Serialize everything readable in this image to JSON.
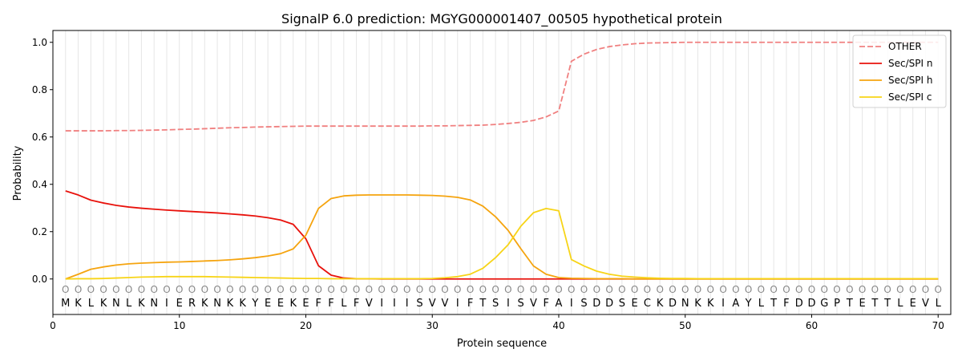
{
  "chart_data": {
    "type": "line",
    "title": "SignalP 6.0 prediction: MGYG000001407_00505 hypothetical protein",
    "xlabel": "Protein sequence",
    "ylabel": "Probability",
    "xlim": [
      0,
      71
    ],
    "ylim": [
      -0.15,
      1.05
    ],
    "xticks": [
      0,
      10,
      20,
      30,
      40,
      50,
      60,
      70
    ],
    "yticks": [
      0.0,
      0.2,
      0.4,
      0.6,
      0.8,
      1.0
    ],
    "xtick_labels": [
      "0",
      "10",
      "20",
      "30",
      "40",
      "50",
      "60",
      "70"
    ],
    "ytick_labels": [
      "0.0",
      "0.2",
      "0.4",
      "0.6",
      "0.8",
      "1.0"
    ],
    "legend_position": "top-right",
    "grid": "vertical lines at each residue",
    "sequence": [
      "M",
      "K",
      "L",
      "K",
      "N",
      "L",
      "K",
      "N",
      "I",
      "E",
      "R",
      "K",
      "N",
      "K",
      "K",
      "Y",
      "E",
      "E",
      "K",
      "E",
      "F",
      "F",
      "L",
      "F",
      "V",
      "I",
      "I",
      "I",
      "S",
      "V",
      "V",
      "I",
      "F",
      "T",
      "S",
      "I",
      "S",
      "V",
      "F",
      "A",
      "I",
      "S",
      "D",
      "D",
      "S",
      "E",
      "C",
      "K",
      "D",
      "N",
      "K",
      "K",
      "I",
      "A",
      "Y",
      "L",
      "T",
      "F",
      "D",
      "D",
      "G",
      "P",
      "T",
      "E",
      "T",
      "T",
      "L",
      "E",
      "V",
      "L"
    ],
    "position_marker_label": "O",
    "x": [
      1,
      2,
      3,
      4,
      5,
      6,
      7,
      8,
      9,
      10,
      11,
      12,
      13,
      14,
      15,
      16,
      17,
      18,
      19,
      20,
      21,
      22,
      23,
      24,
      25,
      26,
      27,
      28,
      29,
      30,
      31,
      32,
      33,
      34,
      35,
      36,
      37,
      38,
      39,
      40,
      41,
      42,
      43,
      44,
      45,
      46,
      47,
      48,
      49,
      50,
      51,
      52,
      53,
      54,
      55,
      56,
      57,
      58,
      59,
      60,
      61,
      62,
      63,
      64,
      65,
      66,
      67,
      68,
      69,
      70
    ],
    "series": [
      {
        "name": "OTHER",
        "color": "#f08080",
        "style": "dashed",
        "values": [
          0.626,
          0.626,
          0.626,
          0.626,
          0.627,
          0.627,
          0.628,
          0.629,
          0.63,
          0.632,
          0.633,
          0.635,
          0.637,
          0.639,
          0.64,
          0.642,
          0.643,
          0.644,
          0.645,
          0.646,
          0.646,
          0.646,
          0.646,
          0.646,
          0.646,
          0.646,
          0.646,
          0.646,
          0.646,
          0.647,
          0.647,
          0.648,
          0.649,
          0.65,
          0.653,
          0.657,
          0.662,
          0.67,
          0.685,
          0.71,
          0.92,
          0.95,
          0.97,
          0.982,
          0.989,
          0.994,
          0.997,
          0.998,
          0.999,
          1.0,
          1.0,
          1.0,
          1.0,
          1.0,
          1.0,
          1.0,
          1.0,
          1.0,
          1.0,
          1.0,
          1.0,
          1.0,
          1.0,
          1.0,
          1.0,
          1.0,
          1.0,
          1.0,
          1.0,
          1.0
        ]
      },
      {
        "name": "Sec/SPI n",
        "color": "#e8120c",
        "style": "solid",
        "values": [
          0.372,
          0.355,
          0.333,
          0.321,
          0.311,
          0.304,
          0.299,
          0.295,
          0.291,
          0.288,
          0.285,
          0.282,
          0.279,
          0.275,
          0.271,
          0.266,
          0.259,
          0.249,
          0.231,
          0.17,
          0.056,
          0.016,
          0.004,
          0.001,
          0.001,
          0.0,
          0.0,
          0.0,
          0.0,
          0.0,
          0.0,
          0.0,
          0.0,
          0.0,
          0.0,
          0.0,
          0.0,
          0.0,
          0.0,
          0.0,
          0.0,
          0.0,
          0.0,
          0.0,
          0.0,
          0.0,
          0.0,
          0.0,
          0.0,
          0.0,
          0.0,
          0.0,
          0.0,
          0.0,
          0.0,
          0.0,
          0.0,
          0.0,
          0.0,
          0.0,
          0.0,
          0.0,
          0.0,
          0.0,
          0.0,
          0.0,
          0.0,
          0.0,
          0.0,
          0.0
        ]
      },
      {
        "name": "Sec/SPI h",
        "color": "#f5a40f",
        "style": "solid",
        "values": [
          0.0,
          0.02,
          0.041,
          0.051,
          0.059,
          0.064,
          0.067,
          0.069,
          0.071,
          0.072,
          0.074,
          0.076,
          0.078,
          0.081,
          0.085,
          0.09,
          0.097,
          0.107,
          0.127,
          0.185,
          0.298,
          0.34,
          0.351,
          0.354,
          0.355,
          0.355,
          0.355,
          0.355,
          0.354,
          0.353,
          0.35,
          0.345,
          0.334,
          0.308,
          0.263,
          0.205,
          0.128,
          0.055,
          0.02,
          0.006,
          0.003,
          0.002,
          0.001,
          0.001,
          0.001,
          0.0,
          0.0,
          0.0,
          0.0,
          0.0,
          0.0,
          0.0,
          0.0,
          0.0,
          0.0,
          0.0,
          0.0,
          0.0,
          0.0,
          0.0,
          0.0,
          0.0,
          0.0,
          0.0,
          0.0,
          0.0,
          0.0,
          0.0,
          0.0,
          0.0
        ]
      },
      {
        "name": "Sec/SPI c",
        "color": "#f7d417",
        "style": "solid",
        "values": [
          0.0,
          0.001,
          0.001,
          0.002,
          0.004,
          0.006,
          0.008,
          0.009,
          0.01,
          0.01,
          0.01,
          0.01,
          0.009,
          0.008,
          0.007,
          0.006,
          0.005,
          0.004,
          0.003,
          0.002,
          0.002,
          0.001,
          0.001,
          0.001,
          0.001,
          0.001,
          0.001,
          0.001,
          0.001,
          0.002,
          0.005,
          0.01,
          0.02,
          0.045,
          0.09,
          0.145,
          0.223,
          0.28,
          0.298,
          0.288,
          0.082,
          0.055,
          0.033,
          0.02,
          0.012,
          0.008,
          0.005,
          0.003,
          0.002,
          0.002,
          0.001,
          0.001,
          0.001,
          0.001,
          0.001,
          0.001,
          0.001,
          0.001,
          0.001,
          0.001,
          0.001,
          0.001,
          0.001,
          0.001,
          0.001,
          0.001,
          0.001,
          0.001,
          0.001,
          0.001
        ]
      }
    ]
  }
}
